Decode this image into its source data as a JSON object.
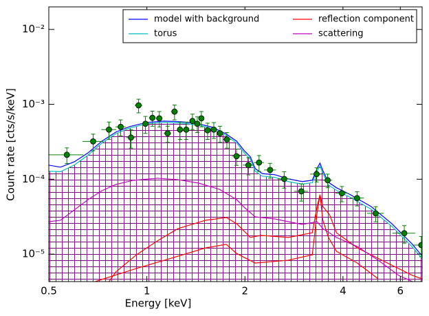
{
  "chart_data": {
    "type": "line",
    "xlabel": "Energy [keV]",
    "ylabel": "Count rate [cts/s/keV]",
    "xlog": true,
    "ylog": true,
    "xlim": [
      0.5,
      7
    ],
    "ylim": [
      4.3e-06,
      0.02
    ],
    "xticks": [
      0.5,
      1,
      2,
      4,
      6
    ],
    "yticks": [
      {
        "value": 1e-05,
        "label": "10⁻⁵"
      },
      {
        "value": 0.0001,
        "label": "10⁻⁴"
      },
      {
        "value": 0.001,
        "label": "10⁻³"
      },
      {
        "value": 0.01,
        "label": "10⁻²"
      }
    ],
    "legend": "upper right",
    "hatch_color": "#800080",
    "series": [
      {
        "name": "model with background",
        "color": "#0000ff",
        "x": [
          0.5,
          0.543,
          0.599,
          0.66,
          0.728,
          0.803,
          0.885,
          1.0,
          1.13,
          1.276,
          1.442,
          1.59,
          1.753,
          1.886,
          2.0,
          2.079,
          2.15,
          2.26,
          2.47,
          2.72,
          3.0,
          3.22,
          3.33,
          3.4,
          3.47,
          3.61,
          3.82,
          4.22,
          4.88,
          5.65,
          6.54,
          7.0
        ],
        "values": [
          0.000154,
          0.000145,
          0.000171,
          0.000225,
          0.000323,
          0.000426,
          0.000504,
          0.000573,
          0.000597,
          0.000585,
          0.00055,
          0.000494,
          0.0004,
          0.000323,
          0.000235,
          0.000199,
          0.000139,
          0.000119,
          0.000115,
          0.000101,
          9.3e-05,
          9.7e-05,
          0.000139,
          0.000164,
          0.00013,
          9.1e-05,
          7.7e-05,
          6.2e-05,
          4.32e-05,
          2.55e-05,
          1.35e-05,
          9.4e-06
        ]
      },
      {
        "name": "torus",
        "color": "#00bfbf",
        "x": [
          0.5,
          0.543,
          0.599,
          0.66,
          0.728,
          0.803,
          0.885,
          1.0,
          1.13,
          1.276,
          1.442,
          1.59,
          1.753,
          1.886,
          2.0,
          2.079,
          2.15,
          2.26,
          2.47,
          2.72,
          3.0,
          3.22,
          3.33,
          3.4,
          3.47,
          3.61,
          3.82,
          4.22,
          4.88,
          5.65,
          6.54,
          7.0
        ],
        "values": [
          0.000128,
          0.000126,
          0.000155,
          0.00021,
          0.000305,
          0.000405,
          0.000482,
          0.00055,
          0.000575,
          0.000562,
          0.000528,
          0.000472,
          0.00038,
          0.000305,
          0.00022,
          0.000185,
          0.000128,
          0.00011,
          0.000106,
          9.3e-05,
          8.6e-05,
          9e-05,
          0.000128,
          0.00015,
          0.00012,
          8.4e-05,
          7.1e-05,
          5.7e-05,
          3.98e-05,
          2.35e-05,
          1.24e-05,
          8.7e-06
        ]
      },
      {
        "name": "reflection component",
        "color": "#ff0000",
        "x": [
          0.765,
          0.803,
          0.929,
          1.076,
          1.246,
          1.514,
          1.753,
          1.886,
          2.079,
          2.24,
          2.72,
          3.22,
          3.33,
          3.4,
          3.47,
          3.64,
          3.82,
          4.43,
          5.38,
          6.54,
          7.0
        ],
        "values": [
          4.3e-06,
          5.78e-06,
          9.8e-06,
          1.5e-05,
          2.19e-05,
          2.83e-05,
          3.08e-05,
          2.55e-05,
          1.67e-05,
          1.78e-05,
          1.67e-05,
          1.93e-05,
          4.32e-05,
          6.2e-05,
          4.32e-05,
          3.35e-05,
          1.93e-05,
          1.21e-05,
          7.9e-06,
          5.2e-06,
          4.68e-06
        ]
      },
      {
        "color": "#ff0000",
        "x": [
          0.694,
          0.929,
          1.186,
          1.514,
          1.753,
          1.886,
          2.15,
          2.72,
          3.22,
          3.33,
          3.4,
          3.47,
          3.61,
          3.82,
          4.43,
          5.13
        ],
        "values": [
          4.3e-06,
          6.43e-06,
          8.8e-06,
          1.21e-05,
          1.35e-05,
          1.02e-05,
          7.6e-06,
          8.3e-06,
          9.8e-06,
          3.5e-05,
          6.2e-05,
          2.83e-05,
          1.67e-05,
          1.09e-05,
          7.6e-06,
          4.68e-06
        ]
      },
      {
        "name": "scattering",
        "color": "#bf00bf",
        "x": [
          0.5,
          0.543,
          0.599,
          0.66,
          0.728,
          0.803,
          0.907,
          1.076,
          1.246,
          1.442,
          1.669,
          1.886,
          2.0,
          2.15,
          2.47,
          3.0,
          3.33,
          3.47,
          3.82,
          4.43,
          5.13,
          5.93,
          6.54
        ],
        "values": [
          2.71e-05,
          2.83e-05,
          3.89e-05,
          5.35e-05,
          7.03e-05,
          8.51e-05,
          9.66e-05,
          0.000103,
          9.87e-05,
          8.87e-05,
          7.34e-05,
          5.35e-05,
          4.14e-05,
          3.15e-05,
          2.95e-05,
          2.49e-05,
          2.71e-05,
          2.19e-05,
          1.67e-05,
          1.26e-05,
          8.3e-06,
          5.2e-06,
          4.3e-06
        ]
      }
    ],
    "points": {
      "color": "#008000",
      "x": [
        0.568,
        0.684,
        0.765,
        0.831,
        0.894,
        0.943,
        0.99,
        1.04,
        1.092,
        1.158,
        1.216,
        1.264,
        1.321,
        1.38,
        1.428,
        1.47,
        1.536,
        1.605,
        1.677,
        1.76,
        1.885,
        2.05,
        2.21,
        2.39,
        2.64,
        2.98,
        3.32,
        3.59,
        3.97,
        4.42,
        5.04,
        6.17,
        6.96
      ],
      "xerr": [
        0.07,
        0.05,
        0.04,
        0.03,
        0.03,
        0.025,
        0.025,
        0.025,
        0.025,
        0.03,
        0.03,
        0.025,
        0.03,
        0.03,
        0.025,
        0.025,
        0.03,
        0.04,
        0.04,
        0.05,
        0.06,
        0.08,
        0.08,
        0.1,
        0.12,
        0.15,
        0.15,
        0.12,
        0.18,
        0.22,
        0.3,
        0.5,
        0.4
      ],
      "values": [
        0.000212,
        0.00032,
        0.00046,
        0.0005,
        0.00036,
        0.00097,
        0.00055,
        0.00066,
        0.00065,
        0.00041,
        0.0008,
        0.00046,
        0.00046,
        0.0006,
        0.00055,
        0.00065,
        0.00045,
        0.00046,
        0.00041,
        0.00034,
        0.000203,
        0.000154,
        0.000167,
        0.000133,
        0.000101,
        6.9e-05,
        0.000117,
        9.7e-05,
        6.5e-05,
        5.6e-05,
        3.5e-05,
        1.9e-05,
        1.32e-05
      ],
      "yerr": [
        5e-05,
        8e-05,
        0.00012,
        0.00012,
        0.0001,
        0.0002,
        0.00014,
        0.00015,
        0.00015,
        0.0001,
        0.00018,
        0.00012,
        0.00012,
        0.00014,
        0.00013,
        0.00015,
        0.00011,
        0.00011,
        0.0001,
        8e-05,
        5e-05,
        4e-05,
        4e-05,
        3e-05,
        2.5e-05,
        1.8e-05,
        2.5e-05,
        2e-05,
        1.5e-05,
        1.2e-05,
        8e-06,
        5e-06,
        4e-06
      ]
    }
  }
}
